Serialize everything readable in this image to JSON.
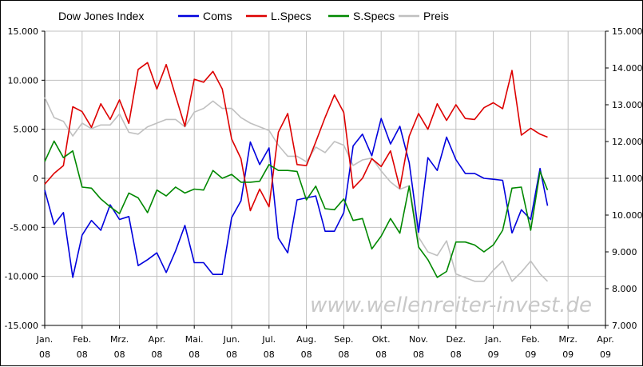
{
  "chart_data": {
    "type": "line",
    "title": "Dow Jones Index",
    "watermark": "www.wellenreiter-invest.de",
    "x_tick_labels": [
      [
        "Jan.",
        "08"
      ],
      [
        "Feb.",
        "08"
      ],
      [
        "Mrz.",
        "08"
      ],
      [
        "Apr.",
        "08"
      ],
      [
        "Mai.",
        "08"
      ],
      [
        "Jun.",
        "08"
      ],
      [
        "Jul.",
        "08"
      ],
      [
        "Aug.",
        "08"
      ],
      [
        "Sep.",
        "08"
      ],
      [
        "Okt.",
        "08"
      ],
      [
        "Nov.",
        "08"
      ],
      [
        "Dez.",
        "08"
      ],
      [
        "Jan.",
        "09"
      ],
      [
        "Feb.",
        "09"
      ],
      [
        "Mrz.",
        "09"
      ],
      [
        "Apr.",
        "09"
      ]
    ],
    "x_range_months": [
      0,
      15
    ],
    "y_left": {
      "range": [
        -15000,
        15000
      ],
      "tick_labels": [
        "15.000",
        "10.000",
        "5.000",
        "0",
        "-5.000",
        "-10.000",
        "-15.000"
      ]
    },
    "y_right": {
      "range": [
        7000,
        15000
      ],
      "tick_labels": [
        "15.000",
        "14.000",
        "13.000",
        "12.000",
        "11.000",
        "10.000",
        "9.000",
        "8.000",
        "7.000"
      ]
    },
    "grid": true,
    "legend_position": "top",
    "series": [
      {
        "name": "Coms",
        "color": "#0000dd",
        "axis": "left",
        "x": [
          0,
          0.25,
          0.5,
          0.75,
          1.0,
          1.25,
          1.5,
          1.75,
          2.0,
          2.25,
          2.5,
          2.75,
          3.0,
          3.25,
          3.5,
          3.75,
          4.0,
          4.25,
          4.5,
          4.75,
          5.0,
          5.25,
          5.5,
          5.75,
          6.0,
          6.25,
          6.5,
          6.75,
          7.0,
          7.25,
          7.5,
          7.75,
          8.0,
          8.25,
          8.5,
          8.75,
          9.0,
          9.25,
          9.5,
          9.75,
          10.0,
          10.25,
          10.5,
          10.75,
          11.0,
          11.25,
          11.5,
          11.75,
          12.0,
          12.25,
          12.5
        ],
        "y": [
          -1200,
          -4700,
          -3500,
          -10100,
          -5800,
          -4300,
          -5300,
          -2700,
          -4200,
          -3900,
          -8900,
          -8300,
          -7600,
          -9600,
          -7400,
          -4800,
          -8600,
          -8600,
          -9800,
          -9800,
          -4000,
          -2300,
          3700,
          1400,
          3100,
          -6100,
          -7600,
          -2200,
          -2000,
          -1800,
          -5400,
          -5400,
          -3500,
          3300,
          4500,
          2300,
          6100,
          3500,
          5300,
          1600,
          -5500,
          2100,
          800,
          4200,
          1900,
          500,
          500,
          0,
          -100,
          -200,
          -5600
        ]
      },
      {
        "name": "Coms_tail",
        "color": "#0000dd",
        "axis": "left",
        "x": [
          12.5,
          12.75,
          13.0,
          13.25,
          13.45
        ],
        "y": [
          -5600,
          -3200,
          -4200,
          1000,
          -2800
        ]
      },
      {
        "name": "L.Specs",
        "color": "#dd0000",
        "axis": "left",
        "x": [
          0,
          0.25,
          0.5,
          0.75,
          1.0,
          1.25,
          1.5,
          1.75,
          2.0,
          2.25,
          2.5,
          2.75,
          3.0,
          3.25,
          3.5,
          3.75,
          4.0,
          4.25,
          4.5,
          4.75,
          5.0,
          5.25,
          5.5,
          5.75,
          6.0,
          6.25,
          6.5,
          6.75,
          7.0,
          7.25,
          7.5,
          7.75,
          8.0,
          8.25,
          8.5,
          8.75,
          9.0,
          9.25,
          9.5,
          9.75,
          10.0,
          10.25,
          10.5,
          10.75,
          11.0,
          11.25,
          11.5,
          11.75,
          12.0,
          12.25,
          12.5,
          12.75,
          13.0,
          13.25,
          13.45
        ],
        "y": [
          -600,
          500,
          1300,
          7300,
          6800,
          5200,
          7600,
          6000,
          8000,
          5600,
          11100,
          11800,
          9100,
          11600,
          8400,
          5300,
          10100,
          9800,
          10900,
          9100,
          4000,
          2000,
          -3300,
          -1100,
          -2900,
          4700,
          6600,
          1400,
          1300,
          3700,
          6200,
          8500,
          6700,
          -1000,
          0,
          2000,
          1200,
          2800,
          -1000,
          4300,
          6600,
          5000,
          7600,
          5900,
          7500,
          6100,
          6000,
          7200,
          7700,
          7100,
          11000,
          4400,
          5100,
          4500,
          4200
        ]
      },
      {
        "name": "S.Specs",
        "color": "#008800",
        "axis": "left",
        "x": [
          0,
          0.25,
          0.5,
          0.75,
          1.0,
          1.25,
          1.5,
          1.75,
          2.0,
          2.25,
          2.5,
          2.75,
          3.0,
          3.25,
          3.5,
          3.75,
          4.0,
          4.25,
          4.5,
          4.75,
          5.0,
          5.25,
          5.5,
          5.75,
          6.0,
          6.25,
          6.5,
          6.75,
          7.0,
          7.25,
          7.5,
          7.75,
          8.0,
          8.25,
          8.5,
          8.75,
          9.0,
          9.25,
          9.5,
          9.75,
          10.0,
          10.25,
          10.5,
          10.75,
          11.0,
          11.25,
          11.5,
          11.75,
          12.0,
          12.25,
          12.5,
          12.75,
          13.0,
          13.25,
          13.45
        ],
        "y": [
          1700,
          3800,
          2100,
          2800,
          -900,
          -1000,
          -2100,
          -2900,
          -3600,
          -1500,
          -2000,
          -3500,
          -1200,
          -1800,
          -900,
          -1500,
          -1100,
          -1200,
          800,
          0,
          400,
          -400,
          -400,
          -300,
          1400,
          800,
          800,
          700,
          -2200,
          -800,
          -3100,
          -3200,
          -2100,
          -4300,
          -4100,
          -7200,
          -5900,
          -4100,
          -5600,
          -800,
          -7000,
          -8300,
          -10100,
          -9500,
          -6500,
          -6500,
          -6800,
          -7500,
          -6800,
          -5300,
          -1000,
          -900,
          -5300,
          700,
          -1200
        ]
      },
      {
        "name": "Preis",
        "color": "#c0c0c0",
        "axis": "right",
        "x": [
          0,
          0.25,
          0.5,
          0.75,
          1.0,
          1.25,
          1.5,
          1.75,
          2.0,
          2.25,
          2.5,
          2.75,
          3.0,
          3.25,
          3.5,
          3.75,
          4.0,
          4.25,
          4.5,
          4.75,
          5.0,
          5.25,
          5.5,
          5.75,
          6.0,
          6.25,
          6.5,
          6.75,
          7.0,
          7.25,
          7.5,
          7.75,
          8.0,
          8.25,
          8.5,
          8.75,
          9.0,
          9.25,
          9.5,
          9.75,
          10.0,
          10.25,
          10.5,
          10.75,
          11.0,
          11.25,
          11.5,
          11.75,
          12.0,
          12.25,
          12.5,
          12.75,
          13.0,
          13.25,
          13.45
        ],
        "y": [
          13200,
          12650,
          12550,
          12150,
          12500,
          12350,
          12450,
          12450,
          12750,
          12250,
          12200,
          12400,
          12500,
          12600,
          12600,
          12400,
          12800,
          12900,
          13100,
          12900,
          12900,
          12650,
          12500,
          12400,
          12300,
          11900,
          11600,
          11600,
          11450,
          11850,
          11700,
          12000,
          11900,
          11350,
          11500,
          11550,
          11200,
          10900,
          10700,
          10800,
          9400,
          9000,
          8900,
          9300,
          8400,
          8300,
          8200,
          8200,
          8500,
          8750,
          8200,
          8450,
          8750,
          8400,
          8200
        ]
      }
    ],
    "legend": [
      {
        "name": "Coms",
        "color": "#0000dd"
      },
      {
        "name": "L.Specs",
        "color": "#dd0000"
      },
      {
        "name": "S.Specs",
        "color": "#008800"
      },
      {
        "name": "Preis",
        "color": "#c0c0c0"
      }
    ]
  }
}
